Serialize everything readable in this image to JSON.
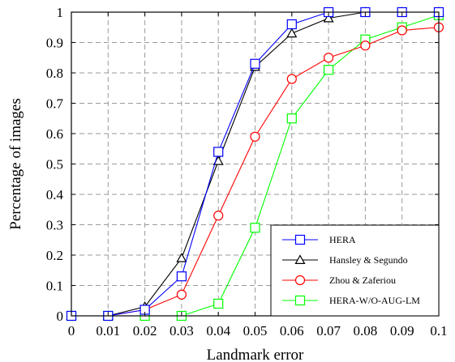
{
  "chart_data": {
    "type": "line",
    "title": "",
    "xlabel": "Landmark error",
    "ylabel": "Percentage of images",
    "xlim": [
      0,
      0.1
    ],
    "ylim": [
      0,
      1
    ],
    "xticks": [
      "0",
      "0.01",
      "0.02",
      "0.03",
      "0.04",
      "0.05",
      "0.06",
      "0.07",
      "0.08",
      "0.09",
      "0.1"
    ],
    "yticks": [
      "0",
      "0.1",
      "0.2",
      "0.3",
      "0.4",
      "0.5",
      "0.6",
      "0.7",
      "0.8",
      "0.9",
      "1"
    ],
    "grid": true,
    "legend_position": "bottom-right",
    "x": [
      0,
      0.01,
      0.02,
      0.03,
      0.04,
      0.05,
      0.06,
      0.07,
      0.08,
      0.09,
      0.1
    ],
    "series": [
      {
        "name": "HERA",
        "color": "#0000ff",
        "marker": "square",
        "values": [
          0,
          0,
          0.02,
          0.13,
          0.54,
          0.83,
          0.96,
          1.0,
          1.0,
          1.0,
          1.0
        ]
      },
      {
        "name": "Hansley & Segundo",
        "color": "#000000",
        "marker": "triangle",
        "values": [
          0,
          0,
          0.03,
          0.19,
          0.51,
          0.82,
          0.93,
          0.98,
          1.0,
          1.0,
          1.0
        ]
      },
      {
        "name": "Zhou & Zaferiou",
        "color": "#ff0000",
        "marker": "circle",
        "values": [
          0,
          0,
          0.02,
          0.07,
          0.33,
          0.59,
          0.78,
          0.85,
          0.89,
          0.94,
          0.95
        ]
      },
      {
        "name": "HERA-W/O-AUG-LM",
        "color": "#00ff00",
        "marker": "square",
        "values": [
          0,
          0,
          0,
          0,
          0.04,
          0.29,
          0.65,
          0.81,
          0.91,
          0.95,
          0.99
        ]
      }
    ]
  }
}
